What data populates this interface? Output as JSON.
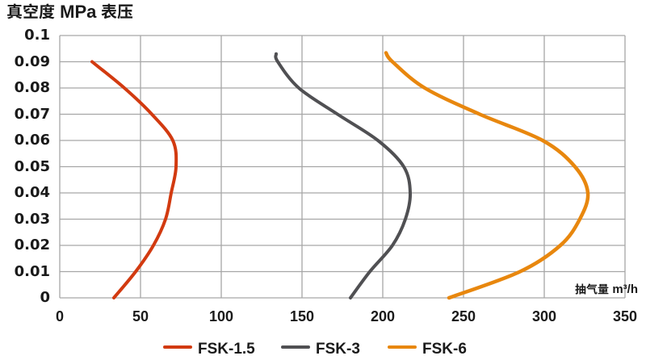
{
  "chart_data": {
    "type": "line",
    "title": "真空度 MPa 表压",
    "xlabel": "抽气量 m³/h",
    "ylabel": "",
    "x_axis": {
      "min": 0,
      "max": 350,
      "tick_step": 50,
      "ticks": [
        "0",
        "50",
        "100",
        "150",
        "200",
        "250",
        "300",
        "350"
      ]
    },
    "y_axis": {
      "min": 0,
      "max": 0.1,
      "tick_step": 0.01,
      "ticks": [
        "0",
        "0.01",
        "0.02",
        "0.03",
        "0.04",
        "0.05",
        "0.06",
        "0.07",
        "0.08",
        "0.09",
        "0.1"
      ]
    },
    "grid": true,
    "legend_position": "bottom",
    "series": [
      {
        "name": "FSK-1.5",
        "color": "#d23a10",
        "stroke_width": 4,
        "points": [
          [
            20,
            0.09
          ],
          [
            40,
            0.08
          ],
          [
            57,
            0.07
          ],
          [
            70,
            0.06
          ],
          [
            72,
            0.05
          ],
          [
            69,
            0.04
          ],
          [
            65.5,
            0.03
          ],
          [
            58,
            0.02
          ],
          [
            47,
            0.01
          ],
          [
            33.5,
            0
          ]
        ]
      },
      {
        "name": "FSK-3",
        "color": "#505053",
        "stroke_width": 4,
        "points": [
          [
            134,
            0.093
          ],
          [
            135,
            0.09
          ],
          [
            148,
            0.08
          ],
          [
            172,
            0.07
          ],
          [
            197,
            0.06
          ],
          [
            213,
            0.05
          ],
          [
            217,
            0.04
          ],
          [
            214,
            0.03
          ],
          [
            206,
            0.02
          ],
          [
            192,
            0.01
          ],
          [
            180,
            0
          ]
        ]
      },
      {
        "name": "FSK-6",
        "color": "#e8870e",
        "stroke_width": 4.5,
        "points": [
          [
            202,
            0.0934
          ],
          [
            206,
            0.09
          ],
          [
            226,
            0.08
          ],
          [
            260,
            0.07
          ],
          [
            299,
            0.06
          ],
          [
            319,
            0.05
          ],
          [
            327,
            0.04
          ],
          [
            322,
            0.03
          ],
          [
            310,
            0.02
          ],
          [
            285,
            0.01
          ],
          [
            241,
            0
          ]
        ]
      }
    ],
    "style": {
      "grid_color": "#a6a6a6",
      "text_color": "#1a1a1a",
      "background": "#ffffff"
    }
  }
}
